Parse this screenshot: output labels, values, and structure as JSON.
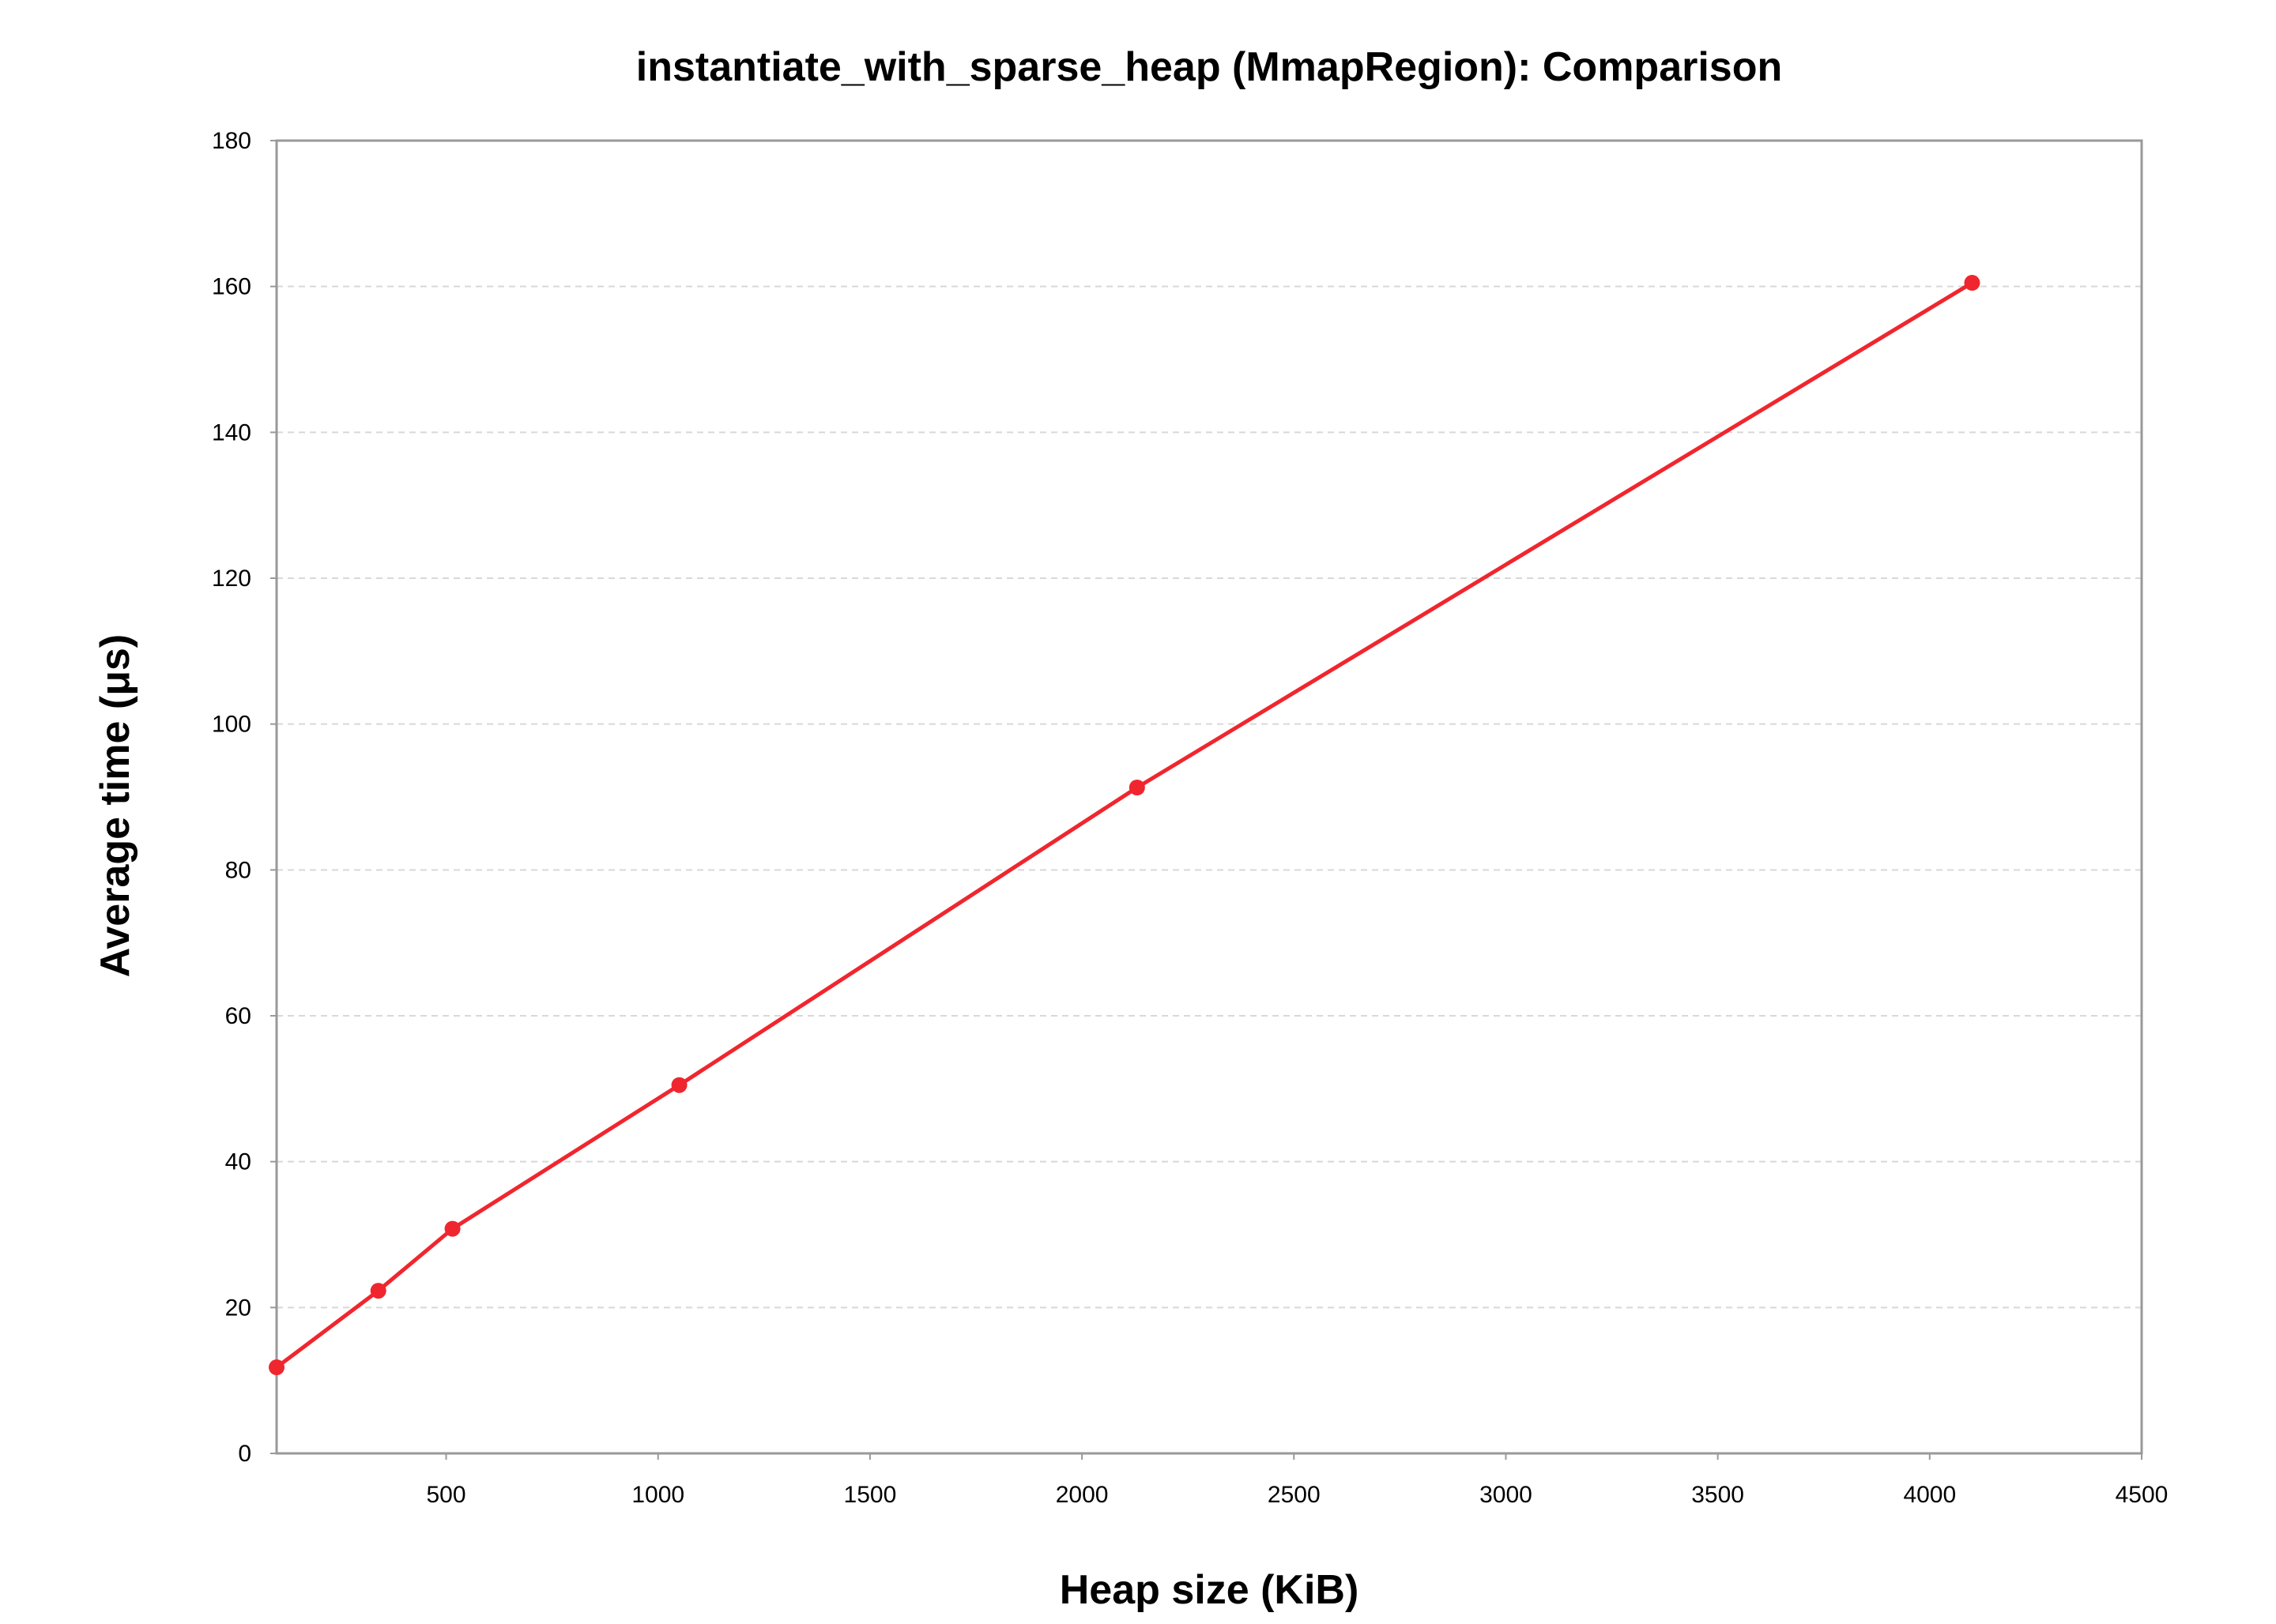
{
  "chart_data": {
    "type": "line",
    "title": "instantiate_with_sparse_heap (MmapRegion): Comparison",
    "xlabel": "Heap size (KiB)",
    "ylabel": "Average time (μs)",
    "xlim": [
      100,
      4500
    ],
    "ylim": [
      0,
      180
    ],
    "xticks": [
      500,
      1000,
      1500,
      2000,
      2500,
      3000,
      3500,
      4000,
      4500
    ],
    "yticks": [
      0,
      20,
      40,
      60,
      80,
      100,
      120,
      140,
      160,
      180
    ],
    "xtick_labels": [
      "500",
      "1000",
      "1500",
      "2000",
      "2500",
      "3000",
      "3500",
      "4000",
      "4500"
    ],
    "ytick_labels": [
      "0",
      "20",
      "40",
      "60",
      "80",
      "100",
      "120",
      "140",
      "160",
      "180"
    ],
    "grid": "horizontal dashed",
    "legend": "none",
    "series": [
      {
        "color": "#f0262e",
        "x": [
          100,
          340,
          515,
          1050,
          2130,
          4100
        ],
        "y": [
          11.8,
          22.3,
          30.8,
          50.5,
          91.3,
          160.5
        ]
      }
    ]
  }
}
